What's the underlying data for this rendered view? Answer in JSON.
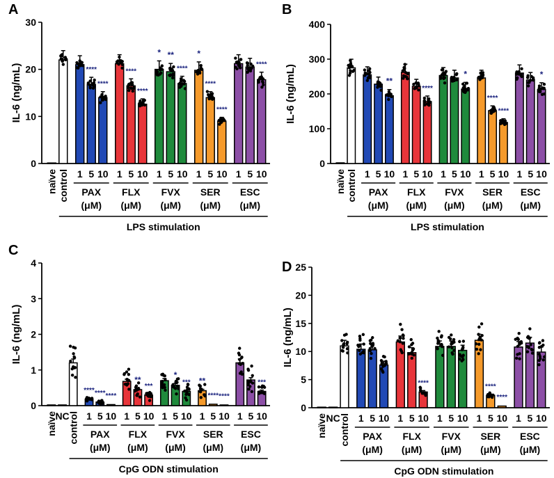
{
  "figure": {
    "panel_labels": [
      "A",
      "B",
      "C",
      "D"
    ]
  },
  "colors": {
    "control": "#ffffff",
    "PAX": "#2149b5",
    "FLX": "#e8353a",
    "FVX": "#1f8a3c",
    "SER": "#f59a2b",
    "ESC": "#8c4fa6",
    "star": "#1a237e"
  },
  "chart_data": [
    {
      "panel": "A",
      "type": "bar",
      "ylabel": "IL-6 (ng/mL)",
      "ylim": [
        0,
        30
      ],
      "yticks": [
        0,
        10,
        20,
        30
      ],
      "xlabel": "LPS stimulation",
      "groups": [
        {
          "name": "",
          "unit": "",
          "bars": [
            {
              "label": "naïve",
              "value": 0.1,
              "color_key": "control",
              "stars": ""
            },
            {
              "label": "control",
              "value": 22,
              "color_key": "control",
              "stars": ""
            }
          ]
        },
        {
          "name": "PAX",
          "unit": "(μM)",
          "bars": [
            {
              "label": "1",
              "value": 21,
              "color_key": "PAX",
              "stars": ""
            },
            {
              "label": "5",
              "value": 16.8,
              "color_key": "PAX",
              "stars": "****"
            },
            {
              "label": "10",
              "value": 14,
              "color_key": "PAX",
              "stars": "****"
            }
          ]
        },
        {
          "name": "FLX",
          "unit": "(μM)",
          "bars": [
            {
              "label": "1",
              "value": 21.2,
              "color_key": "FLX",
              "stars": ""
            },
            {
              "label": "5",
              "value": 16.5,
              "color_key": "FLX",
              "stars": "****"
            },
            {
              "label": "10",
              "value": 12.6,
              "color_key": "FLX",
              "stars": "****"
            }
          ]
        },
        {
          "name": "FVX",
          "unit": "(μM)",
          "bars": [
            {
              "label": "1",
              "value": 20,
              "color_key": "FVX",
              "stars": "*"
            },
            {
              "label": "5",
              "value": 19.5,
              "color_key": "FVX",
              "stars": "**"
            },
            {
              "label": "10",
              "value": 17,
              "color_key": "FVX",
              "stars": "****"
            }
          ]
        },
        {
          "name": "SER",
          "unit": "(μM)",
          "bars": [
            {
              "label": "1",
              "value": 19.8,
              "color_key": "SER",
              "stars": "*"
            },
            {
              "label": "5",
              "value": 14,
              "color_key": "SER",
              "stars": "****"
            },
            {
              "label": "10",
              "value": 9,
              "color_key": "SER",
              "stars": "****"
            }
          ]
        },
        {
          "name": "ESC",
          "unit": "(μM)",
          "bars": [
            {
              "label": "1",
              "value": 21.2,
              "color_key": "ESC",
              "stars": ""
            },
            {
              "label": "5",
              "value": 20.5,
              "color_key": "ESC",
              "stars": ""
            },
            {
              "label": "10",
              "value": 17.8,
              "color_key": "ESC",
              "stars": "****"
            }
          ]
        }
      ]
    },
    {
      "panel": "B",
      "type": "bar",
      "ylabel": "IL-6 (ng/mL)",
      "ylim": [
        0,
        400
      ],
      "yticks": [
        0,
        100,
        200,
        300,
        400
      ],
      "xlabel": "LPS stimulation",
      "groups": [
        {
          "name": "",
          "unit": "",
          "bars": [
            {
              "label": "naïve",
              "value": 2,
              "color_key": "control",
              "stars": ""
            },
            {
              "label": "control",
              "value": 275,
              "color_key": "control",
              "stars": ""
            }
          ]
        },
        {
          "name": "PAX",
          "unit": "(μM)",
          "bars": [
            {
              "label": "1",
              "value": 255,
              "color_key": "PAX",
              "stars": ""
            },
            {
              "label": "5",
              "value": 228,
              "color_key": "PAX",
              "stars": ""
            },
            {
              "label": "10",
              "value": 195,
              "color_key": "PAX",
              "stars": "**"
            }
          ]
        },
        {
          "name": "FLX",
          "unit": "(μM)",
          "bars": [
            {
              "label": "1",
              "value": 262,
              "color_key": "FLX",
              "stars": ""
            },
            {
              "label": "5",
              "value": 222,
              "color_key": "FLX",
              "stars": ""
            },
            {
              "label": "10",
              "value": 178,
              "color_key": "FLX",
              "stars": "****"
            }
          ]
        },
        {
          "name": "FVX",
          "unit": "(μM)",
          "bars": [
            {
              "label": "1",
              "value": 253,
              "color_key": "FVX",
              "stars": ""
            },
            {
              "label": "5",
              "value": 246,
              "color_key": "FVX",
              "stars": ""
            },
            {
              "label": "10",
              "value": 214,
              "color_key": "FVX",
              "stars": "*"
            }
          ]
        },
        {
          "name": "SER",
          "unit": "(μM)",
          "bars": [
            {
              "label": "1",
              "value": 246,
              "color_key": "SER",
              "stars": ""
            },
            {
              "label": "5",
              "value": 152,
              "color_key": "SER",
              "stars": "****"
            },
            {
              "label": "10",
              "value": 118,
              "color_key": "SER",
              "stars": "****"
            }
          ]
        },
        {
          "name": "ESC",
          "unit": "(μM)",
          "bars": [
            {
              "label": "1",
              "value": 260,
              "color_key": "ESC",
              "stars": ""
            },
            {
              "label": "5",
              "value": 240,
              "color_key": "ESC",
              "stars": ""
            },
            {
              "label": "10",
              "value": 213,
              "color_key": "ESC",
              "stars": "*"
            }
          ]
        }
      ]
    },
    {
      "panel": "C",
      "type": "bar",
      "ylabel": "IL-6 (ng/mL)",
      "ylim": [
        0,
        4
      ],
      "yticks": [
        0,
        1,
        2,
        3,
        4
      ],
      "xlabel": "CpG ODN stimulation",
      "groups": [
        {
          "name": "",
          "unit": "",
          "bars": [
            {
              "label": "naïve",
              "value": 0.02,
              "color_key": "control",
              "stars": ""
            },
            {
              "label": "NC",
              "value": 0.02,
              "color_key": "control",
              "stars": ""
            },
            {
              "label": "control",
              "value": 1.2,
              "color_key": "control",
              "stars": ""
            }
          ]
        },
        {
          "name": "PAX",
          "unit": "(μM)",
          "bars": [
            {
              "label": "1",
              "value": 0.18,
              "color_key": "PAX",
              "stars": "****"
            },
            {
              "label": "5",
              "value": 0.1,
              "color_key": "PAX",
              "stars": "****"
            },
            {
              "label": "10",
              "value": 0.03,
              "color_key": "PAX",
              "stars": "****"
            }
          ]
        },
        {
          "name": "FLX",
          "unit": "(μM)",
          "bars": [
            {
              "label": "1",
              "value": 0.68,
              "color_key": "FLX",
              "stars": ""
            },
            {
              "label": "5",
              "value": 0.45,
              "color_key": "FLX",
              "stars": "**"
            },
            {
              "label": "10",
              "value": 0.3,
              "color_key": "FLX",
              "stars": "***"
            }
          ]
        },
        {
          "name": "FVX",
          "unit": "(μM)",
          "bars": [
            {
              "label": "1",
              "value": 0.7,
              "color_key": "FVX",
              "stars": ""
            },
            {
              "label": "5",
              "value": 0.57,
              "color_key": "FVX",
              "stars": "*"
            },
            {
              "label": "10",
              "value": 0.4,
              "color_key": "FVX",
              "stars": "***"
            }
          ]
        },
        {
          "name": "SER",
          "unit": "(μM)",
          "bars": [
            {
              "label": "1",
              "value": 0.42,
              "color_key": "SER",
              "stars": "**"
            },
            {
              "label": "5",
              "value": 0.04,
              "color_key": "SER",
              "stars": "****"
            },
            {
              "label": "10",
              "value": 0.02,
              "color_key": "SER",
              "stars": "****"
            }
          ]
        },
        {
          "name": "ESC",
          "unit": "(μM)",
          "bars": [
            {
              "label": "1",
              "value": 1.2,
              "color_key": "ESC",
              "stars": ""
            },
            {
              "label": "5",
              "value": 0.72,
              "color_key": "ESC",
              "stars": ""
            },
            {
              "label": "10",
              "value": 0.4,
              "color_key": "ESC",
              "stars": "***"
            }
          ]
        }
      ]
    },
    {
      "panel": "D",
      "type": "bar",
      "ylabel": "IL-6 (ng/mL)",
      "ylim": [
        0,
        25
      ],
      "yticks": [
        0,
        5,
        10,
        15,
        20,
        25
      ],
      "xlabel": "CpG ODN stimulation",
      "groups": [
        {
          "name": "",
          "unit": "",
          "bars": [
            {
              "label": "naïve",
              "value": 0.1,
              "color_key": "control",
              "stars": ""
            },
            {
              "label": "NC",
              "value": 0.1,
              "color_key": "control",
              "stars": ""
            },
            {
              "label": "control",
              "value": 11,
              "color_key": "control",
              "stars": ""
            }
          ]
        },
        {
          "name": "PAX",
          "unit": "(μM)",
          "bars": [
            {
              "label": "1",
              "value": 10.4,
              "color_key": "PAX",
              "stars": ""
            },
            {
              "label": "5",
              "value": 10.3,
              "color_key": "PAX",
              "stars": ""
            },
            {
              "label": "10",
              "value": 7.6,
              "color_key": "PAX",
              "stars": ""
            }
          ]
        },
        {
          "name": "FLX",
          "unit": "(μM)",
          "bars": [
            {
              "label": "1",
              "value": 11.7,
              "color_key": "FLX",
              "stars": ""
            },
            {
              "label": "5",
              "value": 9.8,
              "color_key": "FLX",
              "stars": ""
            },
            {
              "label": "10",
              "value": 2.8,
              "color_key": "FLX",
              "stars": "****"
            }
          ]
        },
        {
          "name": "FVX",
          "unit": "(μM)",
          "bars": [
            {
              "label": "1",
              "value": 10.9,
              "color_key": "FVX",
              "stars": ""
            },
            {
              "label": "5",
              "value": 10.9,
              "color_key": "FVX",
              "stars": ""
            },
            {
              "label": "10",
              "value": 10.2,
              "color_key": "FVX",
              "stars": ""
            }
          ]
        },
        {
          "name": "SER",
          "unit": "(μM)",
          "bars": [
            {
              "label": "1",
              "value": 12,
              "color_key": "SER",
              "stars": ""
            },
            {
              "label": "5",
              "value": 2.2,
              "color_key": "SER",
              "stars": "****"
            },
            {
              "label": "10",
              "value": 0.3,
              "color_key": "SER",
              "stars": "****"
            }
          ]
        },
        {
          "name": "ESC",
          "unit": "(μM)",
          "bars": [
            {
              "label": "1",
              "value": 10.8,
              "color_key": "ESC",
              "stars": ""
            },
            {
              "label": "5",
              "value": 11.5,
              "color_key": "ESC",
              "stars": ""
            },
            {
              "label": "10",
              "value": 9.9,
              "color_key": "ESC",
              "stars": ""
            }
          ]
        }
      ]
    }
  ]
}
